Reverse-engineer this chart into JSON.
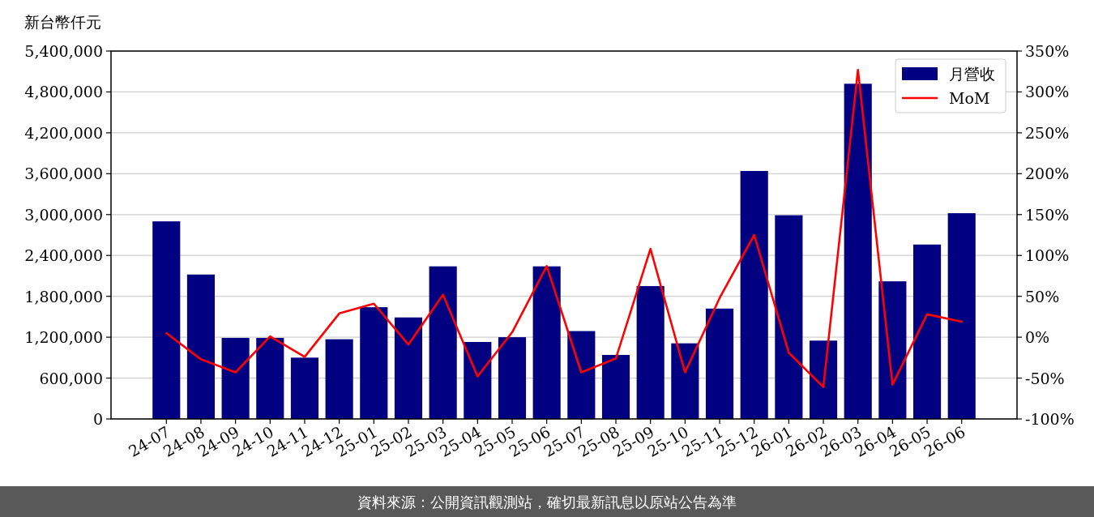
{
  "chart_data": {
    "type": "bar",
    "ylabel": "新台幣仟元",
    "categories": [
      "24-07",
      "24-08",
      "24-09",
      "24-10",
      "24-11",
      "24-12",
      "25-01",
      "25-02",
      "25-03",
      "25-04",
      "25-05",
      "25-06",
      "25-07",
      "25-08",
      "25-09",
      "25-10",
      "25-11",
      "25-12",
      "26-01",
      "26-02",
      "26-03",
      "26-04",
      "26-05",
      "26-06"
    ],
    "series": [
      {
        "name": "月營收",
        "color": "#000080",
        "values": [
          2900000,
          2120000,
          1190000,
          1190000,
          900000,
          1170000,
          1640000,
          1490000,
          2240000,
          1130000,
          1200000,
          2240000,
          1290000,
          940000,
          1950000,
          1110000,
          1620000,
          3640000,
          2990000,
          1150000,
          4920000,
          2020000,
          2560000,
          3020000
        ]
      },
      {
        "name": "MoM",
        "type": "line",
        "axis": "y2",
        "color": "#ff0000",
        "values": [
          5,
          -27,
          -43,
          1,
          -24,
          29,
          41,
          -9,
          52,
          -48,
          6,
          87,
          -43,
          -26,
          108,
          -43,
          48,
          125,
          -19,
          -61,
          327,
          -58,
          28,
          19
        ]
      }
    ],
    "ylim": [
      0,
      5400000
    ],
    "yticks": [
      0,
      {
        "value": 600000,
        "label": "600,000"
      },
      {
        "value": 1200000,
        "label": "1,200,000"
      },
      {
        "value": 1800000,
        "label": "1,800,000"
      },
      {
        "value": 2400000,
        "label": "2,400,000"
      },
      {
        "value": 3000000,
        "label": "3,000,000"
      },
      {
        "value": 3600000,
        "label": "3,600,000"
      },
      {
        "value": 4200000,
        "label": "4,200,000"
      },
      {
        "value": 4800000,
        "label": "4,800,000"
      },
      {
        "value": 5400000,
        "label": "5,400,000"
      }
    ],
    "y2lim": [
      -100,
      350
    ],
    "y2ticks": [
      {
        "value": -100,
        "label": "-100%"
      },
      {
        "value": -50,
        "label": "-50%"
      },
      {
        "value": 0,
        "label": "0%"
      },
      {
        "value": 50,
        "label": "50%"
      },
      {
        "value": 100,
        "label": "100%"
      },
      {
        "value": 150,
        "label": "150%"
      },
      {
        "value": 200,
        "label": "200%"
      },
      {
        "value": 250,
        "label": "250%"
      },
      {
        "value": 300,
        "label": "300%"
      },
      {
        "value": 350,
        "label": "350%"
      }
    ],
    "grid": "y",
    "legend": "top right",
    "marker": "none",
    "line_style": "solid",
    "annotations": [
      "資料來源：公開資訊觀測站，確切最新訊息以原站公告為準"
    ]
  }
}
